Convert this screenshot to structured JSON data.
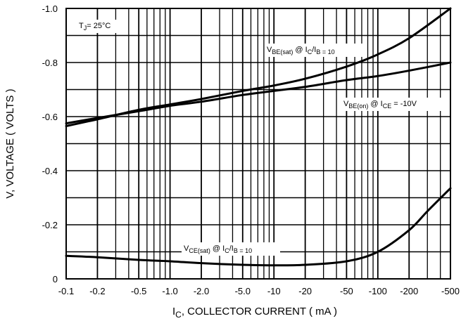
{
  "chart_data": {
    "type": "line",
    "x_scale": "log",
    "xlim": [
      0.1,
      500
    ],
    "ylim": [
      0,
      1.0
    ],
    "x_ticks": [
      {
        "v": 0.1,
        "label": "-0.1"
      },
      {
        "v": 0.2,
        "label": "-0.2"
      },
      {
        "v": 0.5,
        "label": "-0.5"
      },
      {
        "v": 1,
        "label": "-1.0"
      },
      {
        "v": 2,
        "label": "-2.0"
      },
      {
        "v": 5,
        "label": "-5.0"
      },
      {
        "v": 10,
        "label": "-10"
      },
      {
        "v": 20,
        "label": "-20"
      },
      {
        "v": 50,
        "label": "-50"
      },
      {
        "v": 100,
        "label": "-100"
      },
      {
        "v": 200,
        "label": "-200"
      },
      {
        "v": 500,
        "label": "-500"
      }
    ],
    "y_ticks": [
      {
        "v": 0,
        "label": "0"
      },
      {
        "v": 0.2,
        "label": "-0.2"
      },
      {
        "v": 0.4,
        "label": "-0.4"
      },
      {
        "v": 0.6,
        "label": "-0.6"
      },
      {
        "v": 0.8,
        "label": "-0.8"
      },
      {
        "v": 1.0,
        "label": "-1.0"
      }
    ],
    "y_grid": [
      0.1,
      0.2,
      0.3,
      0.4,
      0.5,
      0.6,
      0.7,
      0.8,
      0.9
    ],
    "xlabel": {
      "main": "I",
      "sub": "C",
      "rest": ", COLLECTOR CURRENT ( mA )"
    },
    "ylabel": "V, VOLTAGE ( VOLTS )",
    "condition": {
      "main": "T",
      "sub": "J",
      "rest": "= 25°C"
    },
    "series": [
      {
        "label_parts": [
          [
            "V",
            ""
          ],
          [
            "BE(sat)",
            "sub"
          ],
          [
            " @ I",
            ""
          ],
          [
            "C",
            "sub"
          ],
          [
            "/I",
            ""
          ],
          [
            "B",
            "sub"
          ],
          [
            " = 10",
            "sub"
          ]
        ],
        "x": [
          0.1,
          0.2,
          0.5,
          1,
          2,
          5,
          10,
          20,
          50,
          100,
          200,
          500
        ],
        "y": [
          0.565,
          0.59,
          0.625,
          0.645,
          0.665,
          0.695,
          0.715,
          0.74,
          0.785,
          0.83,
          0.89,
          1.0
        ]
      },
      {
        "label_parts": [
          [
            "V",
            ""
          ],
          [
            "BE(on)",
            "sub"
          ],
          [
            " @ I",
            ""
          ],
          [
            "CE",
            "sub"
          ],
          [
            " = -10V",
            ""
          ]
        ],
        "x": [
          0.1,
          0.2,
          0.5,
          1,
          2,
          5,
          10,
          20,
          50,
          100,
          200,
          500
        ],
        "y": [
          0.575,
          0.595,
          0.62,
          0.64,
          0.655,
          0.68,
          0.695,
          0.71,
          0.735,
          0.75,
          0.77,
          0.8
        ]
      },
      {
        "label_parts": [
          [
            "V",
            ""
          ],
          [
            "CE(sat)",
            "sub"
          ],
          [
            " @ I",
            ""
          ],
          [
            "C",
            "sub"
          ],
          [
            "/I",
            ""
          ],
          [
            "B",
            "sub"
          ],
          [
            " = 10",
            "sub"
          ]
        ],
        "x": [
          0.1,
          0.2,
          0.5,
          1,
          2,
          5,
          10,
          20,
          50,
          100,
          200,
          300,
          500
        ],
        "y": [
          0.085,
          0.08,
          0.07,
          0.065,
          0.058,
          0.052,
          0.05,
          0.052,
          0.065,
          0.1,
          0.18,
          0.25,
          0.335
        ]
      }
    ]
  }
}
